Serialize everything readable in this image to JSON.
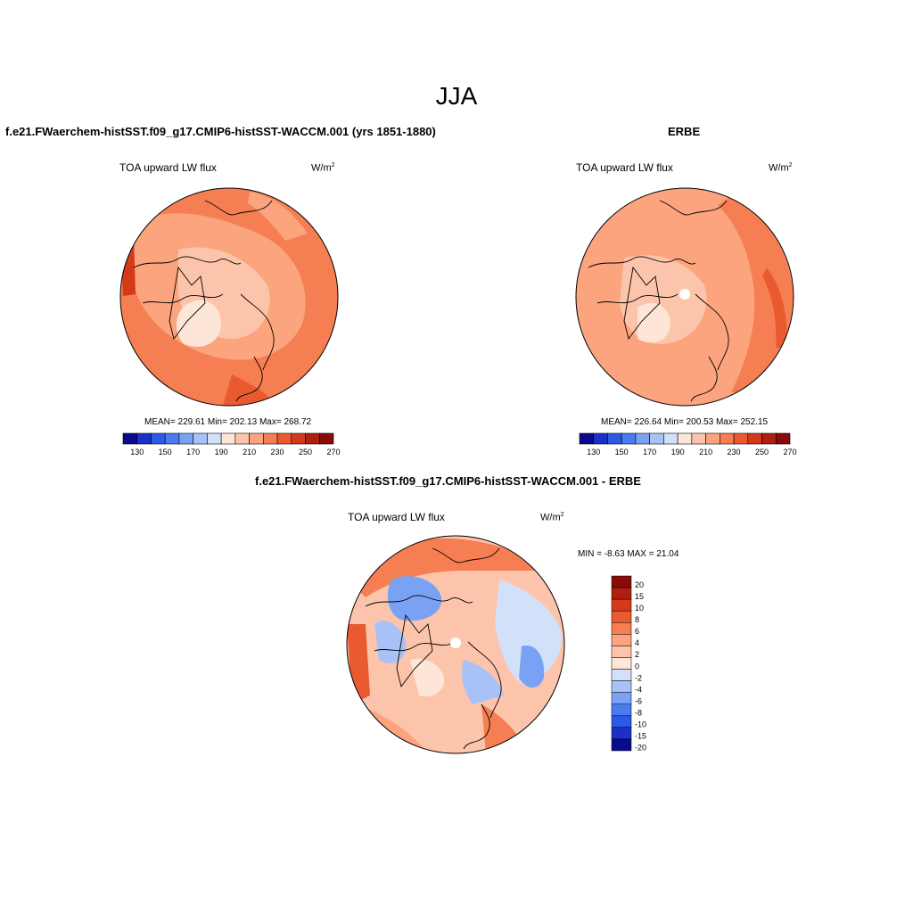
{
  "suptitle": "JJA",
  "panels": [
    {
      "title": "f.e21.FWaerchem-histSST.f09_g17.CMIP6-histSST-WACCM.001 (yrs 1851-1880)",
      "left_label": "TOA upward LW flux",
      "units": "W/m",
      "units_sup": "2",
      "stats": "MEAN= 229.61  Min= 202.13  Max= 268.72",
      "colorbar_ticks": [
        "130",
        "150",
        "170",
        "190",
        "210",
        "230",
        "250",
        "270"
      ]
    },
    {
      "title": "ERBE",
      "left_label": "TOA upward LW flux",
      "units": "W/m",
      "units_sup": "2",
      "stats": "MEAN= 226.64  Min= 200.53  Max= 252.15",
      "colorbar_ticks": [
        "130",
        "150",
        "170",
        "190",
        "210",
        "230",
        "250",
        "270"
      ]
    },
    {
      "title": "f.e21.FWaerchem-histSST.f09_g17.CMIP6-histSST-WACCM.001 - ERBE",
      "left_label": "TOA upward LW flux",
      "units": "W/m",
      "units_sup": "2",
      "minmax": "MIN =  -8.63 MAX =  21.04",
      "colorbar_ticks": [
        "20",
        "15",
        "10",
        "8",
        "6",
        "4",
        "2",
        "0",
        "-2",
        "-4",
        "-6",
        "-8",
        "-10",
        "-15",
        "-20"
      ]
    }
  ],
  "colors": {
    "abs_colorbar": [
      "#0a0a8c",
      "#1a30c8",
      "#2a5ae6",
      "#4a7cf0",
      "#7aa2f4",
      "#a8c2f8",
      "#d2e0fa",
      "#fde6d8",
      "#fcc5ab",
      "#fba47e",
      "#f57e52",
      "#ea5a30",
      "#d43a1a",
      "#b01e10",
      "#8a0a08"
    ],
    "diff_colorbar": [
      "#8a0a08",
      "#b01e10",
      "#d43a1a",
      "#ea5a30",
      "#f57e52",
      "#fba47e",
      "#fcc5ab",
      "#fde6d8",
      "#d2e0fa",
      "#a8c2f8",
      "#7aa2f4",
      "#4a7cf0",
      "#2a5ae6",
      "#1a30c8",
      "#0a0a8c"
    ]
  }
}
